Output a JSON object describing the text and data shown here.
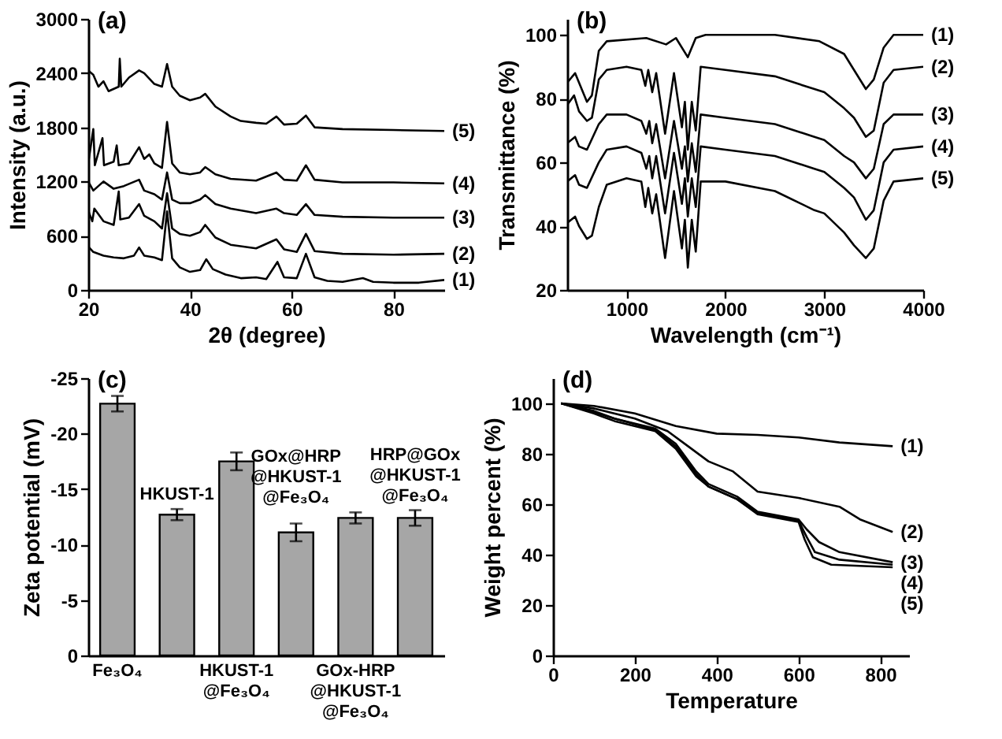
{
  "chart_data": [
    {
      "type": "line",
      "title": "(a)",
      "xlabel": "2θ (degree)",
      "ylabel": "Intensity (a.u.)",
      "xlim": [
        20,
        90
      ],
      "ylim": [
        0,
        3000
      ],
      "xticks": [
        20,
        40,
        60,
        80
      ],
      "yticks": [
        0,
        600,
        1200,
        1800,
        2400,
        3000
      ],
      "series": [
        {
          "name": "(1)",
          "color": "#000000",
          "x": [
            20,
            21,
            23,
            25,
            27,
            29,
            30,
            31,
            33,
            34.5,
            35.5,
            36.5,
            38,
            40,
            42,
            43.2,
            44.5,
            47,
            50,
            53,
            55,
            57.2,
            58.5,
            61,
            62.8,
            64.5,
            67,
            70,
            74,
            76,
            80,
            85,
            90
          ],
          "values": [
            480,
            420,
            380,
            360,
            350,
            380,
            470,
            380,
            360,
            330,
            870,
            350,
            250,
            200,
            220,
            340,
            230,
            170,
            130,
            140,
            120,
            310,
            140,
            130,
            400,
            140,
            100,
            90,
            130,
            90,
            80,
            80,
            110
          ]
        },
        {
          "name": "(2)",
          "color": "#000000",
          "x": [
            20,
            20.8,
            21.2,
            23,
            25,
            26,
            26.3,
            28,
            30,
            31,
            33,
            34.5,
            35.5,
            36.5,
            38,
            40,
            42,
            43,
            45,
            48,
            53,
            57,
            58.5,
            61,
            62.8,
            64.5,
            70,
            80,
            90
          ],
          "values": [
            880,
            760,
            900,
            760,
            720,
            1090,
            780,
            800,
            950,
            820,
            760,
            680,
            1070,
            680,
            620,
            600,
            640,
            720,
            580,
            500,
            460,
            560,
            450,
            420,
            620,
            430,
            400,
            390,
            400
          ]
        },
        {
          "name": "(3)",
          "color": "#000000",
          "x": [
            20,
            21,
            23,
            25,
            27,
            30,
            31,
            33,
            34.5,
            35.5,
            36.5,
            38,
            40,
            42,
            43,
            45,
            48,
            53,
            57,
            58.5,
            61,
            62.8,
            64.5,
            70,
            80,
            90
          ],
          "values": [
            1200,
            1100,
            1200,
            1120,
            1150,
            1220,
            1100,
            1060,
            1000,
            1300,
            1000,
            960,
            960,
            1000,
            1050,
            950,
            900,
            850,
            900,
            850,
            830,
            950,
            830,
            810,
            800,
            800
          ]
        },
        {
          "name": "(4)",
          "color": "#000000",
          "x": [
            20,
            21,
            21.3,
            22.8,
            23.1,
            25,
            25.6,
            26,
            28,
            30,
            31,
            32,
            33,
            34.5,
            35.5,
            36.5,
            38,
            40,
            42,
            43,
            45,
            48,
            53,
            57,
            58.5,
            61,
            62.8,
            64.5,
            70,
            80,
            90
          ],
          "values": [
            1400,
            1780,
            1380,
            1680,
            1380,
            1420,
            1600,
            1380,
            1400,
            1580,
            1450,
            1500,
            1400,
            1350,
            1860,
            1400,
            1300,
            1280,
            1300,
            1360,
            1280,
            1230,
            1210,
            1300,
            1220,
            1210,
            1380,
            1220,
            1190,
            1190,
            1180
          ]
        },
        {
          "name": "(5)",
          "color": "#000000",
          "x": [
            20,
            21,
            22,
            23,
            24,
            26,
            26.2,
            26.5,
            28,
            30,
            31,
            33,
            34.5,
            35.5,
            36.5,
            38,
            40,
            42,
            43,
            45,
            48,
            50,
            53,
            55,
            57,
            58.5,
            61,
            62.8,
            64.5,
            70,
            80,
            90
          ],
          "values": [
            2430,
            2380,
            2250,
            2310,
            2200,
            2250,
            2560,
            2250,
            2350,
            2430,
            2400,
            2280,
            2250,
            2500,
            2250,
            2150,
            2100,
            2130,
            2170,
            2030,
            1920,
            1870,
            1850,
            1840,
            1920,
            1830,
            1840,
            1930,
            1800,
            1780,
            1770,
            1760
          ]
        }
      ]
    },
    {
      "type": "line",
      "title": "(b)",
      "xlabel": "Wavelength (cm⁻¹)",
      "ylabel": "Transmittance (%)",
      "xlim": [
        400,
        4000
      ],
      "ylim": [
        20,
        105
      ],
      "xticks": [
        1000,
        2000,
        3000,
        4000
      ],
      "yticks": [
        20,
        40,
        60,
        80,
        100
      ],
      "series": [
        {
          "name": "(1)",
          "color": "#000000",
          "x": [
            400,
            480,
            600,
            650,
            720,
            800,
            1200,
            1400,
            1500,
            1620,
            1700,
            1800,
            2500,
            2950,
            3200,
            3300,
            3420,
            3500,
            3600,
            3700,
            4000
          ],
          "values": [
            85,
            88,
            79,
            81,
            95,
            98,
            99,
            97,
            99,
            93,
            99,
            100,
            100,
            98,
            94,
            89,
            83,
            86,
            96,
            100,
            100
          ]
        },
        {
          "name": "(2)",
          "color": "#000000",
          "x": [
            400,
            470,
            520,
            600,
            650,
            720,
            800,
            1000,
            1150,
            1190,
            1220,
            1260,
            1300,
            1390,
            1480,
            1560,
            1590,
            1620,
            1660,
            1700,
            1750,
            2000,
            2500,
            2900,
            3000,
            3200,
            3300,
            3420,
            3500,
            3600,
            3700,
            4000
          ],
          "values": [
            78,
            81,
            76,
            73,
            74,
            86,
            89,
            90,
            89,
            84,
            89,
            82,
            88,
            69,
            88,
            71,
            79,
            64,
            79,
            70,
            90,
            89,
            87,
            83,
            82,
            77,
            74,
            68,
            70,
            85,
            89,
            90
          ]
        },
        {
          "name": "(3)",
          "color": "#000000",
          "x": [
            400,
            480,
            520,
            600,
            720,
            800,
            1000,
            1150,
            1200,
            1230,
            1260,
            1300,
            1390,
            1480,
            1560,
            1590,
            1620,
            1660,
            1700,
            1750,
            2000,
            2500,
            2900,
            3000,
            3200,
            3300,
            3420,
            3500,
            3600,
            3700,
            4000
          ],
          "values": [
            66,
            68,
            65,
            64,
            72,
            75,
            75,
            73,
            69,
            73,
            66,
            72,
            55,
            73,
            58,
            65,
            54,
            66,
            57,
            75,
            74,
            72,
            68,
            67,
            62,
            60,
            55,
            58,
            72,
            75,
            75
          ]
        },
        {
          "name": "(4)",
          "color": "#000000",
          "x": [
            400,
            480,
            520,
            600,
            720,
            800,
            1000,
            1150,
            1200,
            1230,
            1260,
            1300,
            1390,
            1480,
            1560,
            1590,
            1620,
            1660,
            1700,
            1750,
            2000,
            2500,
            2900,
            3000,
            3200,
            3300,
            3420,
            3500,
            3600,
            3700,
            4000
          ],
          "values": [
            54,
            56,
            53,
            52,
            60,
            64,
            65,
            63,
            58,
            62,
            55,
            62,
            44,
            63,
            47,
            55,
            43,
            55,
            46,
            65,
            64,
            62,
            58,
            57,
            52,
            49,
            42,
            45,
            60,
            64,
            65
          ]
        },
        {
          "name": "(5)",
          "color": "#000000",
          "x": [
            400,
            480,
            520,
            600,
            650,
            720,
            800,
            1000,
            1150,
            1190,
            1220,
            1260,
            1300,
            1390,
            1480,
            1560,
            1590,
            1620,
            1660,
            1700,
            1750,
            2000,
            2500,
            2900,
            3000,
            3200,
            3300,
            3420,
            3500,
            3600,
            3700,
            4000
          ],
          "values": [
            41,
            43,
            40,
            36,
            37,
            46,
            53,
            55,
            54,
            46,
            52,
            44,
            50,
            30,
            51,
            33,
            42,
            27,
            42,
            32,
            54,
            54,
            51,
            45,
            44,
            38,
            34,
            30,
            33,
            48,
            54,
            55
          ]
        }
      ]
    },
    {
      "type": "bar",
      "title": "(c)",
      "ylabel": "Zeta potential (mV)",
      "categories": [
        "Fe₃O₄",
        "HKUST-1",
        "HKUST-1 @Fe₃O₄",
        "GOx@HRP @HKUST-1 @Fe₃O₄",
        "GOx-HRP @HKUST-1 @Fe₃O₄",
        "HRP@GOx @HKUST-1 @Fe₃O₄"
      ],
      "values": [
        -22.7,
        -12.7,
        -17.5,
        -11.1,
        -12.4,
        -12.4
      ],
      "errors": [
        0.7,
        0.5,
        0.8,
        0.8,
        0.5,
        0.7
      ],
      "color": "#a6a6a6",
      "ylim": [
        0,
        -25
      ],
      "yticks": [
        0,
        -5,
        -10,
        -15,
        -20,
        -25
      ]
    },
    {
      "type": "line",
      "title": "(d)",
      "xlabel": "Temperature",
      "ylabel": "Weight percent (%)",
      "xlim": [
        0,
        870
      ],
      "ylim": [
        0,
        110
      ],
      "xticks": [
        0,
        200,
        400,
        600,
        800
      ],
      "yticks": [
        0,
        20,
        40,
        60,
        80,
        100
      ],
      "series": [
        {
          "name": "(1)",
          "color": "#000000",
          "x": [
            20,
            100,
            200,
            300,
            400,
            500,
            600,
            700,
            830
          ],
          "values": [
            100,
            99,
            96,
            91,
            88,
            87.5,
            86.5,
            84.5,
            83
          ]
        },
        {
          "name": "(2)",
          "color": "#000000",
          "x": [
            20,
            100,
            200,
            280,
            330,
            380,
            440,
            500,
            600,
            700,
            750,
            830
          ],
          "values": [
            100,
            98,
            94,
            89,
            83,
            77,
            73,
            65,
            62.5,
            59,
            54,
            49
          ]
        },
        {
          "name": "(3)",
          "color": "#000000",
          "x": [
            20,
            100,
            150,
            250,
            300,
            350,
            380,
            450,
            500,
            600,
            620,
            650,
            700,
            830
          ],
          "values": [
            100,
            97,
            94,
            90,
            84,
            73,
            68,
            63,
            57,
            54,
            50,
            45,
            41,
            37
          ]
        },
        {
          "name": "(4)",
          "color": "#000000",
          "x": [
            20,
            100,
            150,
            250,
            300,
            350,
            380,
            450,
            500,
            600,
            620,
            640,
            700,
            830
          ],
          "values": [
            100,
            96.5,
            94,
            89.5,
            83,
            72,
            67,
            62,
            56.5,
            53.5,
            47,
            41,
            38,
            36
          ]
        },
        {
          "name": "(5)",
          "color": "#000000",
          "x": [
            20,
            100,
            150,
            250,
            300,
            350,
            380,
            450,
            500,
            600,
            615,
            635,
            680,
            830
          ],
          "values": [
            100,
            96,
            93,
            89,
            82,
            71,
            67,
            62,
            56,
            53,
            46,
            39,
            36,
            35
          ]
        }
      ]
    }
  ]
}
